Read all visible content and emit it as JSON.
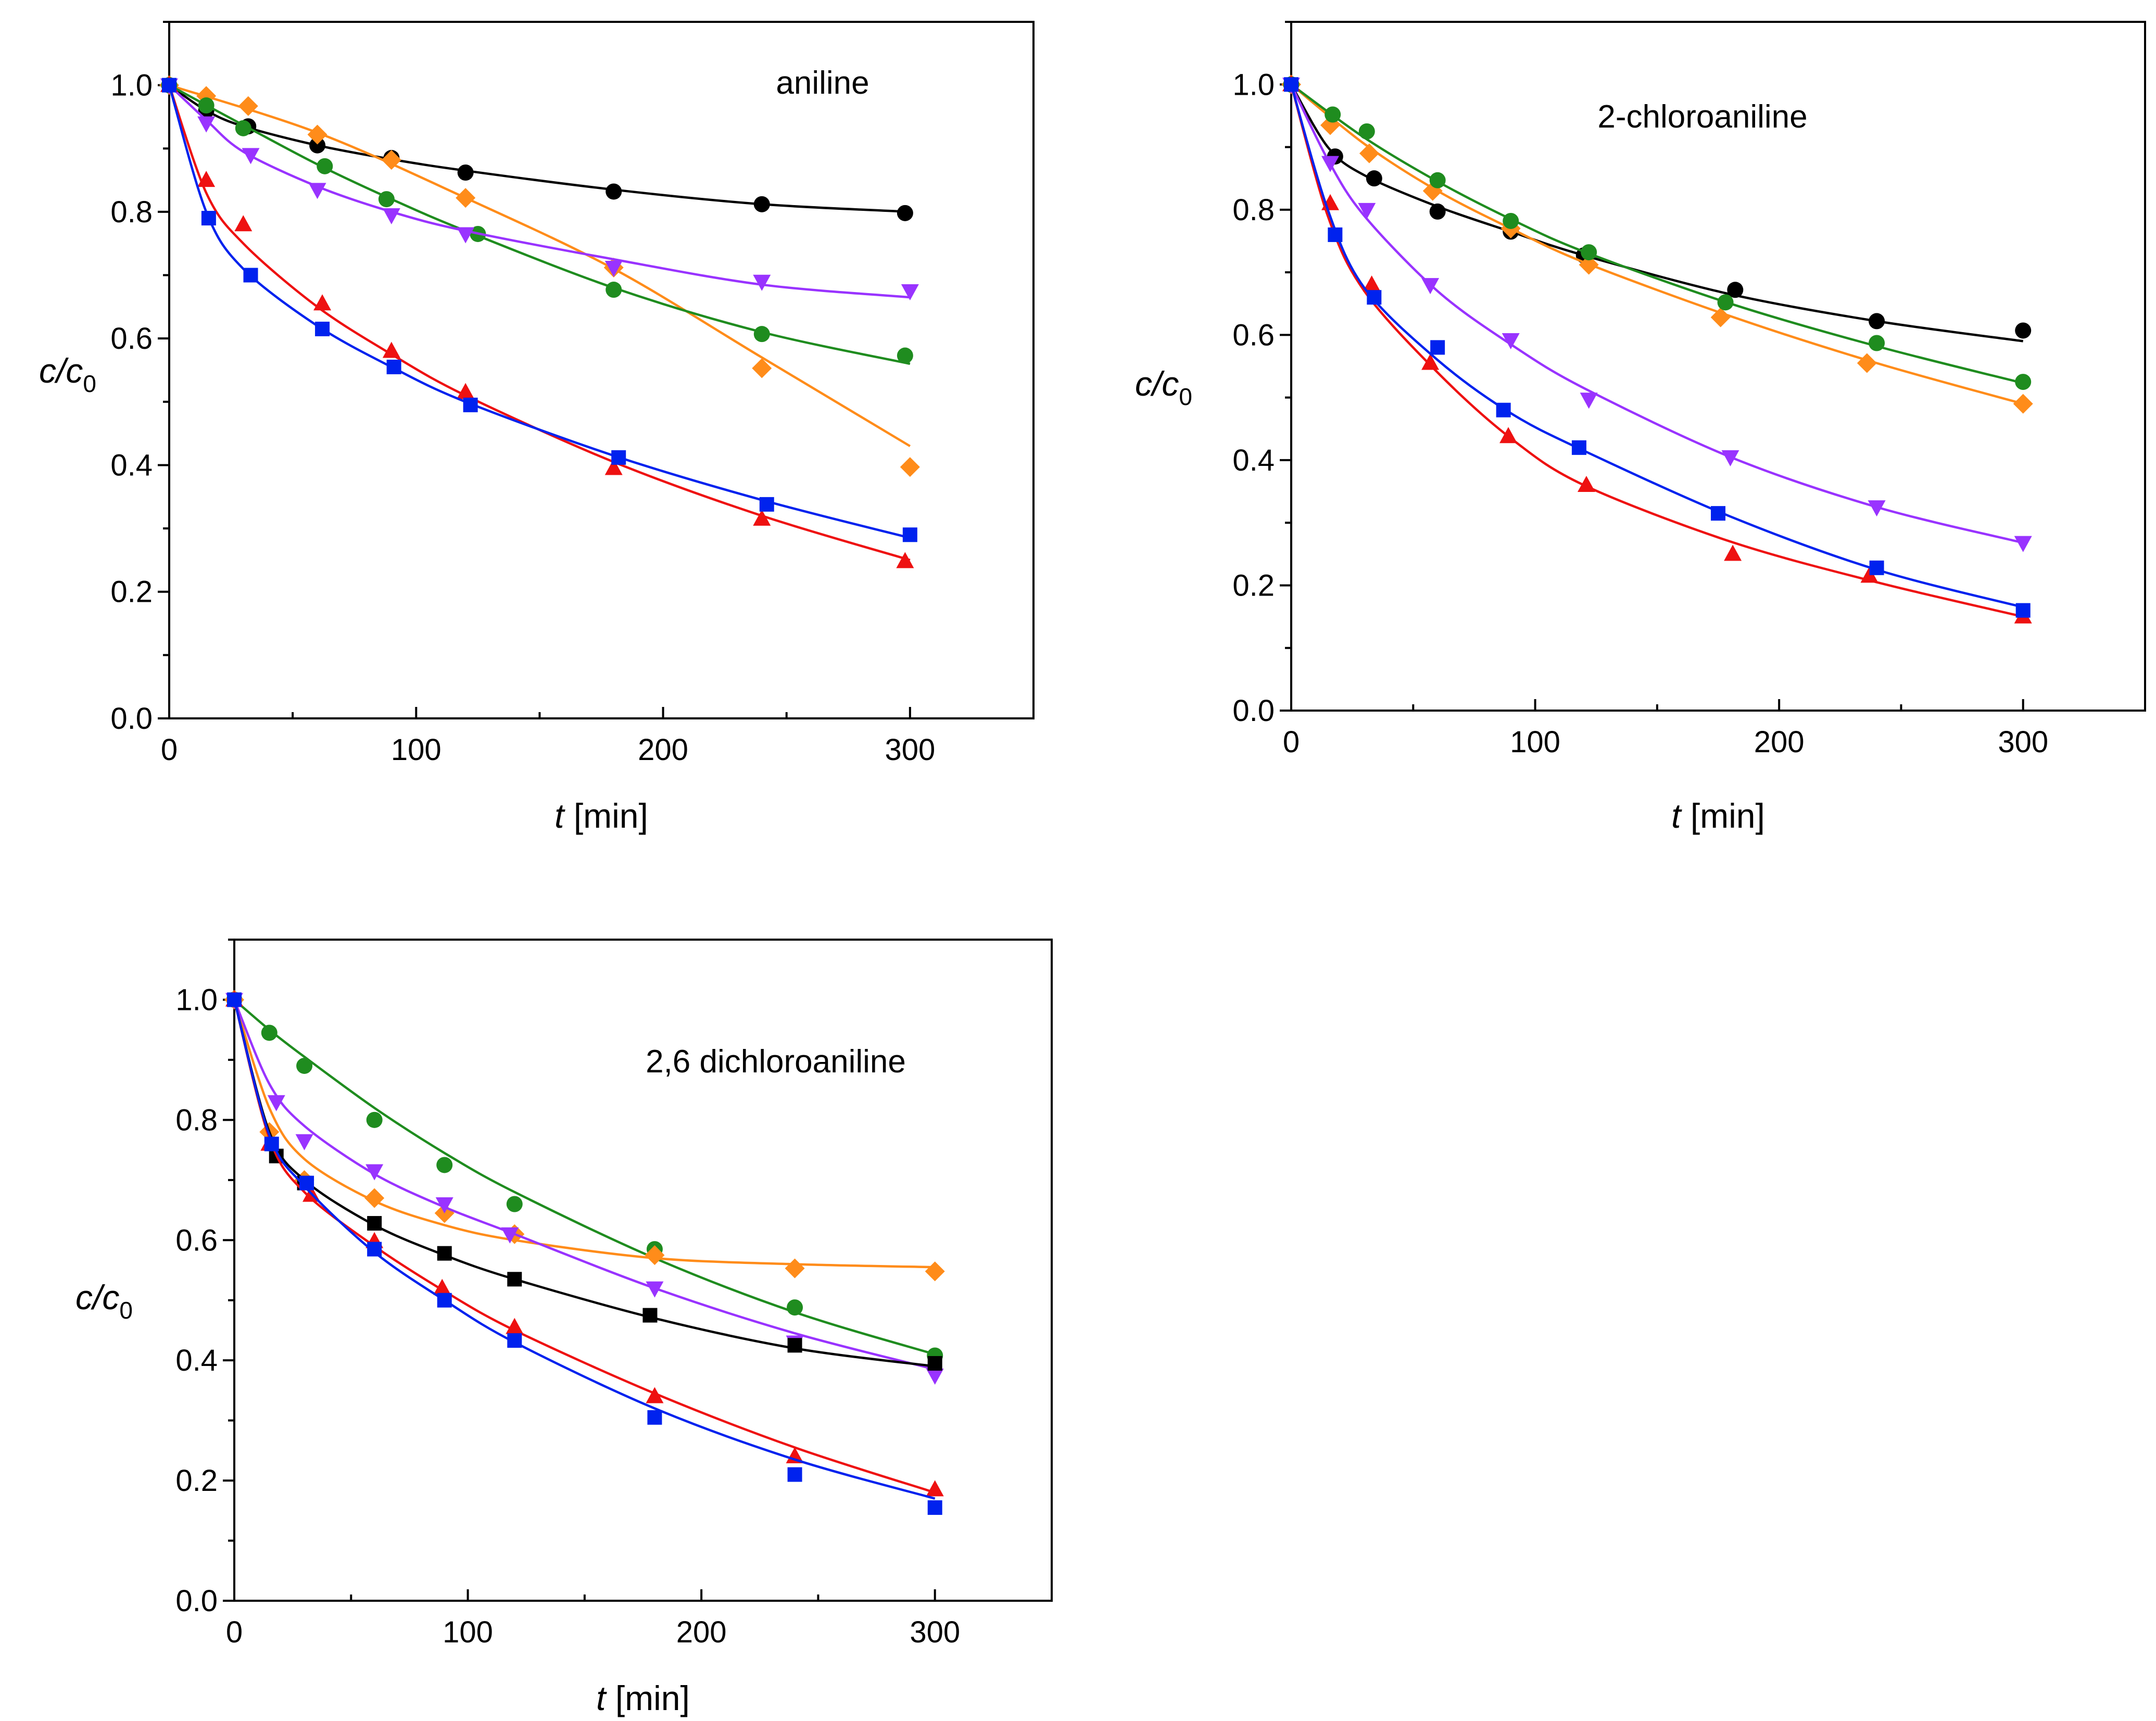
{
  "figure": {
    "panel_count": 3
  },
  "chart_data": [
    {
      "type": "scatter",
      "title": "aniline",
      "xlabel_italic": "t",
      "xlabel_rest": " [min]",
      "ylabel_main": "c/c",
      "ylabel_sub": "0",
      "xlim": [
        0,
        350
      ],
      "ylim": [
        0,
        1.1
      ],
      "xticks": [
        0,
        100,
        200,
        300
      ],
      "yticks": [
        0.0,
        0.2,
        0.4,
        0.6,
        0.8,
        1.0
      ],
      "xtick_labels": [
        "0",
        "100",
        "200",
        "300"
      ],
      "ytick_labels": [
        "0.0",
        "0.2",
        "0.4",
        "0.6",
        "0.8",
        "1.0"
      ],
      "series": [
        {
          "color": "#000000",
          "marker": "circle",
          "x": [
            0,
            15,
            32,
            60,
            90,
            120,
            180,
            240,
            298
          ],
          "y": [
            1.0,
            0.96,
            0.935,
            0.905,
            0.885,
            0.862,
            0.832,
            0.812,
            0.798
          ],
          "fit": "curve",
          "fit_x": [
            0,
            15,
            30,
            60,
            90,
            120,
            180,
            240,
            300
          ],
          "fit_y": [
            1.0,
            0.96,
            0.935,
            0.905,
            0.883,
            0.865,
            0.835,
            0.812,
            0.8
          ]
        },
        {
          "color": "#ff8c1a",
          "marker": "diamond",
          "x": [
            0,
            15,
            32,
            60,
            90,
            120,
            180,
            240,
            300
          ],
          "y": [
            1.0,
            0.983,
            0.967,
            0.922,
            0.882,
            0.822,
            0.712,
            0.553,
            0.397
          ],
          "fit": "curve",
          "fit_x": [
            0,
            60,
            120,
            180,
            240,
            300
          ],
          "fit_y": [
            1.0,
            0.925,
            0.822,
            0.71,
            0.57,
            0.43
          ]
        },
        {
          "color": "#1f8c1f",
          "marker": "circle",
          "x": [
            0,
            15,
            30,
            63,
            88,
            125,
            180,
            240,
            298
          ],
          "y": [
            1.0,
            0.968,
            0.932,
            0.872,
            0.82,
            0.765,
            0.677,
            0.607,
            0.573
          ],
          "fit": "curve",
          "fit_x": [
            0,
            30,
            60,
            90,
            120,
            180,
            240,
            300
          ],
          "fit_y": [
            1.0,
            0.937,
            0.875,
            0.82,
            0.77,
            0.68,
            0.61,
            0.56
          ]
        },
        {
          "color": "#9933ff",
          "marker": "triangle-down",
          "x": [
            0,
            15,
            33,
            60,
            90,
            120,
            180,
            240,
            300
          ],
          "y": [
            1.0,
            0.94,
            0.89,
            0.835,
            0.795,
            0.765,
            0.712,
            0.69,
            0.675
          ],
          "fit": "curve",
          "fit_x": [
            0,
            15,
            30,
            60,
            90,
            120,
            180,
            240,
            300
          ],
          "fit_y": [
            1.0,
            0.945,
            0.895,
            0.84,
            0.8,
            0.77,
            0.725,
            0.685,
            0.665
          ]
        },
        {
          "color": "#ee1111",
          "marker": "triangle-up",
          "x": [
            0,
            15,
            30,
            62,
            90,
            120,
            180,
            240,
            298
          ],
          "y": [
            1.0,
            0.85,
            0.78,
            0.655,
            0.58,
            0.515,
            0.395,
            0.315,
            0.248
          ],
          "fit": "curve",
          "fit_x": [
            0,
            15,
            30,
            60,
            90,
            120,
            180,
            240,
            300
          ],
          "fit_y": [
            1.0,
            0.83,
            0.75,
            0.65,
            0.575,
            0.51,
            0.405,
            0.32,
            0.25
          ]
        },
        {
          "color": "#0022ee",
          "marker": "square",
          "x": [
            0,
            16,
            33,
            62,
            91,
            122,
            182,
            242,
            300
          ],
          "y": [
            1.0,
            0.79,
            0.7,
            0.615,
            0.555,
            0.495,
            0.412,
            0.338,
            0.29
          ],
          "fit": "curve",
          "fit_x": [
            0,
            15,
            30,
            60,
            90,
            120,
            180,
            240,
            300
          ],
          "fit_y": [
            1.0,
            0.8,
            0.71,
            0.62,
            0.555,
            0.5,
            0.415,
            0.345,
            0.285
          ]
        }
      ]
    },
    {
      "type": "scatter",
      "title": "2-chloroaniline",
      "xlabel_italic": "t",
      "xlabel_rest": " [min]",
      "ylabel_main": "c/c",
      "ylabel_sub": "0",
      "xlim": [
        0,
        350
      ],
      "ylim": [
        0,
        1.1
      ],
      "xticks": [
        0,
        100,
        200,
        300
      ],
      "yticks": [
        0.0,
        0.2,
        0.4,
        0.6,
        0.8,
        1.0
      ],
      "xtick_labels": [
        "0",
        "100",
        "200",
        "300"
      ],
      "ytick_labels": [
        "0.0",
        "0.2",
        "0.4",
        "0.6",
        "0.8",
        "1.0"
      ],
      "series": [
        {
          "color": "#000000",
          "marker": "circle",
          "x": [
            0,
            18,
            34,
            60,
            90,
            120,
            182,
            240,
            300
          ],
          "y": [
            1.0,
            0.885,
            0.85,
            0.797,
            0.765,
            0.727,
            0.672,
            0.622,
            0.607
          ],
          "fit": "curve",
          "fit_x": [
            0,
            15,
            30,
            60,
            90,
            120,
            180,
            240,
            300
          ],
          "fit_y": [
            1.0,
            0.9,
            0.855,
            0.805,
            0.765,
            0.727,
            0.665,
            0.622,
            0.59
          ]
        },
        {
          "color": "#ff8c1a",
          "marker": "diamond",
          "x": [
            0,
            16,
            32,
            58,
            90,
            122,
            176,
            236,
            300
          ],
          "y": [
            1.0,
            0.935,
            0.89,
            0.83,
            0.77,
            0.712,
            0.628,
            0.555,
            0.49
          ],
          "fit": "curve",
          "fit_x": [
            0,
            30,
            60,
            90,
            120,
            180,
            240,
            300
          ],
          "fit_y": [
            1.0,
            0.905,
            0.83,
            0.77,
            0.716,
            0.63,
            0.555,
            0.49
          ]
        },
        {
          "color": "#1f8c1f",
          "marker": "circle",
          "x": [
            0,
            17,
            31,
            60,
            90,
            122,
            178,
            240,
            300
          ],
          "y": [
            1.0,
            0.952,
            0.925,
            0.847,
            0.782,
            0.732,
            0.652,
            0.587,
            0.525
          ],
          "fit": "curve",
          "fit_x": [
            0,
            30,
            60,
            90,
            120,
            180,
            240,
            300
          ],
          "fit_y": [
            1.0,
            0.915,
            0.845,
            0.785,
            0.733,
            0.65,
            0.582,
            0.523
          ]
        },
        {
          "color": "#9933ff",
          "marker": "triangle-down",
          "x": [
            0,
            16,
            31,
            57,
            90,
            122,
            180,
            240,
            300
          ],
          "y": [
            1.0,
            0.875,
            0.8,
            0.68,
            0.592,
            0.497,
            0.405,
            0.325,
            0.268
          ],
          "fit": "curve",
          "fit_x": [
            0,
            15,
            30,
            60,
            90,
            120,
            180,
            240,
            300
          ],
          "fit_y": [
            1.0,
            0.88,
            0.79,
            0.67,
            0.585,
            0.515,
            0.405,
            0.325,
            0.268
          ]
        },
        {
          "color": "#ee1111",
          "marker": "triangle-up",
          "x": [
            0,
            16,
            33,
            57,
            89,
            121,
            181,
            237,
            300
          ],
          "y": [
            1.0,
            0.81,
            0.68,
            0.555,
            0.438,
            0.36,
            0.25,
            0.215,
            0.15
          ],
          "fit": "curve",
          "fit_x": [
            0,
            15,
            30,
            60,
            90,
            120,
            180,
            240,
            300
          ],
          "fit_y": [
            1.0,
            0.79,
            0.67,
            0.54,
            0.435,
            0.36,
            0.27,
            0.205,
            0.15
          ]
        },
        {
          "color": "#0022ee",
          "marker": "square",
          "x": [
            0,
            18,
            34,
            60,
            87,
            118,
            175,
            240,
            300
          ],
          "y": [
            1.0,
            0.76,
            0.66,
            0.58,
            0.48,
            0.42,
            0.315,
            0.228,
            0.16
          ],
          "fit": "curve",
          "fit_x": [
            0,
            15,
            30,
            60,
            90,
            120,
            180,
            240,
            300
          ],
          "fit_y": [
            1.0,
            0.8,
            0.675,
            0.56,
            0.475,
            0.415,
            0.31,
            0.225,
            0.165
          ]
        }
      ]
    },
    {
      "type": "scatter",
      "title": "2,6 dichloroaniline",
      "xlabel_italic": "t",
      "xlabel_rest": " [min]",
      "ylabel_main": "c/c",
      "ylabel_sub": "0",
      "xlim": [
        0,
        350
      ],
      "ylim": [
        0,
        1.1
      ],
      "xticks": [
        0,
        100,
        200,
        300
      ],
      "yticks": [
        0.0,
        0.2,
        0.4,
        0.6,
        0.8,
        1.0
      ],
      "xtick_labels": [
        "0",
        "100",
        "200",
        "300"
      ],
      "ytick_labels": [
        "0.0",
        "0.2",
        "0.4",
        "0.6",
        "0.8",
        "1.0"
      ],
      "series": [
        {
          "color": "#1f8c1f",
          "marker": "circle",
          "x": [
            0,
            15,
            30,
            60,
            90,
            120,
            180,
            240,
            300
          ],
          "y": [
            1.0,
            0.945,
            0.89,
            0.8,
            0.725,
            0.66,
            0.585,
            0.488,
            0.408
          ],
          "fit": "curve",
          "fit_x": [
            0,
            15,
            30,
            60,
            90,
            120,
            180,
            240,
            300
          ],
          "fit_y": [
            1.0,
            0.95,
            0.905,
            0.82,
            0.745,
            0.68,
            0.57,
            0.48,
            0.41
          ]
        },
        {
          "color": "#ff8c1a",
          "marker": "diamond",
          "x": [
            0,
            15,
            30,
            60,
            90,
            120,
            180,
            240,
            300
          ],
          "y": [
            1.0,
            0.78,
            0.7,
            0.67,
            0.645,
            0.61,
            0.575,
            0.553,
            0.548
          ],
          "fit": "curve",
          "fit_x": [
            0,
            15,
            30,
            60,
            90,
            120,
            180,
            240,
            300
          ],
          "fit_y": [
            1.0,
            0.82,
            0.735,
            0.665,
            0.625,
            0.6,
            0.57,
            0.56,
            0.555
          ]
        },
        {
          "color": "#9933ff",
          "marker": "triangle-down",
          "x": [
            0,
            18,
            30,
            60,
            90,
            118,
            180,
            240,
            300
          ],
          "y": [
            1.0,
            0.83,
            0.765,
            0.715,
            0.66,
            0.61,
            0.52,
            0.43,
            0.375
          ],
          "fit": "curve",
          "fit_x": [
            0,
            15,
            30,
            60,
            90,
            120,
            180,
            240,
            300
          ],
          "fit_y": [
            1.0,
            0.86,
            0.79,
            0.71,
            0.655,
            0.61,
            0.52,
            0.445,
            0.385
          ]
        },
        {
          "color": "#000000",
          "marker": "square",
          "x": [
            0,
            18,
            30,
            60,
            90,
            120,
            178,
            240,
            300
          ],
          "y": [
            1.0,
            0.74,
            0.695,
            0.628,
            0.578,
            0.535,
            0.475,
            0.425,
            0.395
          ],
          "fit": "curve",
          "fit_x": [
            0,
            15,
            30,
            60,
            90,
            120,
            180,
            240,
            300
          ],
          "fit_y": [
            1.0,
            0.78,
            0.7,
            0.625,
            0.575,
            0.535,
            0.47,
            0.42,
            0.39
          ]
        },
        {
          "color": "#ee1111",
          "marker": "triangle-up",
          "x": [
            0,
            15,
            33,
            60,
            89,
            120,
            180,
            240,
            300
          ],
          "y": [
            1.0,
            0.76,
            0.675,
            0.598,
            0.52,
            0.455,
            0.34,
            0.24,
            0.185
          ],
          "fit": "curve",
          "fit_x": [
            0,
            15,
            30,
            60,
            90,
            120,
            180,
            240,
            300
          ],
          "fit_y": [
            1.0,
            0.77,
            0.68,
            0.59,
            0.515,
            0.45,
            0.345,
            0.255,
            0.18
          ]
        },
        {
          "color": "#0022ee",
          "marker": "square",
          "x": [
            0,
            16,
            31,
            60,
            90,
            120,
            180,
            240,
            300
          ],
          "y": [
            1.0,
            0.76,
            0.695,
            0.585,
            0.5,
            0.433,
            0.305,
            0.21,
            0.155
          ],
          "fit": "curve",
          "fit_x": [
            0,
            15,
            30,
            60,
            90,
            120,
            180,
            240,
            300
          ],
          "fit_y": [
            1.0,
            0.775,
            0.69,
            0.58,
            0.5,
            0.43,
            0.32,
            0.235,
            0.17
          ]
        }
      ]
    }
  ]
}
